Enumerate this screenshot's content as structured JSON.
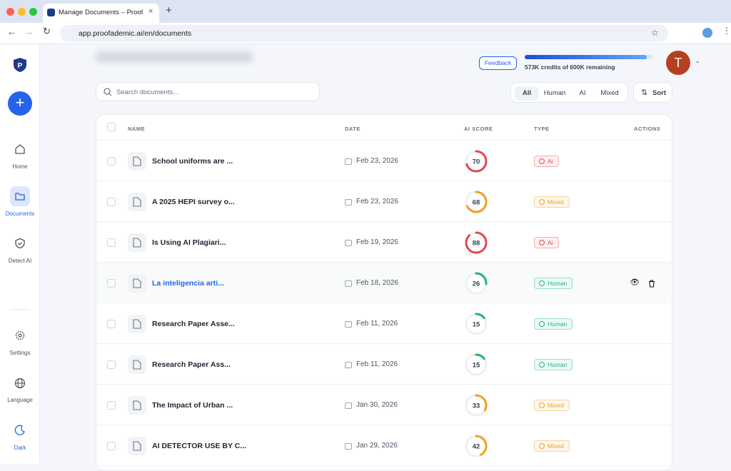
{
  "browser": {
    "tab_title": "Manage Documents – Proofa",
    "url": "app.proofademic.ai/en/documents"
  },
  "sidebar": {
    "items": [
      "Home",
      "Documents",
      "Detect AI",
      "Settings",
      "Language",
      "Dark"
    ]
  },
  "header": {
    "feedback": "Feedback",
    "credits": {
      "label": "573K credits of 600K remaining",
      "remaining": 573,
      "total": 600
    },
    "avatar": "T"
  },
  "toolbar": {
    "search_placeholder": "Search documents...",
    "filters": [
      "All",
      "Human",
      "AI",
      "Mixed"
    ],
    "sort": "Sort"
  },
  "table": {
    "columns": [
      "NAME",
      "DATE",
      "AI SCORE",
      "TYPE",
      "ACTIONS"
    ],
    "score_range": [
      0,
      100
    ],
    "rows": [
      {
        "name": "School uniforms are ...",
        "date": "Feb 23, 2026",
        "score": 70,
        "type": "Ai",
        "color": "#e5484d"
      },
      {
        "name": "A 2025 HEPI survey o...",
        "date": "Feb 23, 2026",
        "score": 68,
        "type": "Mixed",
        "color": "#f0a020"
      },
      {
        "name": "Is Using AI Plagiari...",
        "date": "Feb 19, 2026",
        "score": 88,
        "type": "Ai",
        "color": "#e5484d"
      },
      {
        "name": "La inteligencia arti...",
        "date": "Feb 18, 2026",
        "score": 26,
        "type": "Human",
        "color": "#22b573"
      },
      {
        "name": "Research Paper Asse...",
        "date": "Feb 11, 2026",
        "score": 15,
        "type": "Human",
        "color": "#22b573"
      },
      {
        "name": "Research Paper Ass...",
        "date": "Feb 11, 2026",
        "score": 15,
        "type": "Human",
        "color": "#22b573"
      },
      {
        "name": "The Impact of Urban ...",
        "date": "Jan 30, 2026",
        "score": 33,
        "type": "Mixed",
        "color": "#f0a020"
      },
      {
        "name": "AI DETECTOR USE BY C...",
        "date": "Jan 29, 2026",
        "score": 42,
        "type": "Mixed",
        "color": "#f0a020"
      }
    ]
  }
}
